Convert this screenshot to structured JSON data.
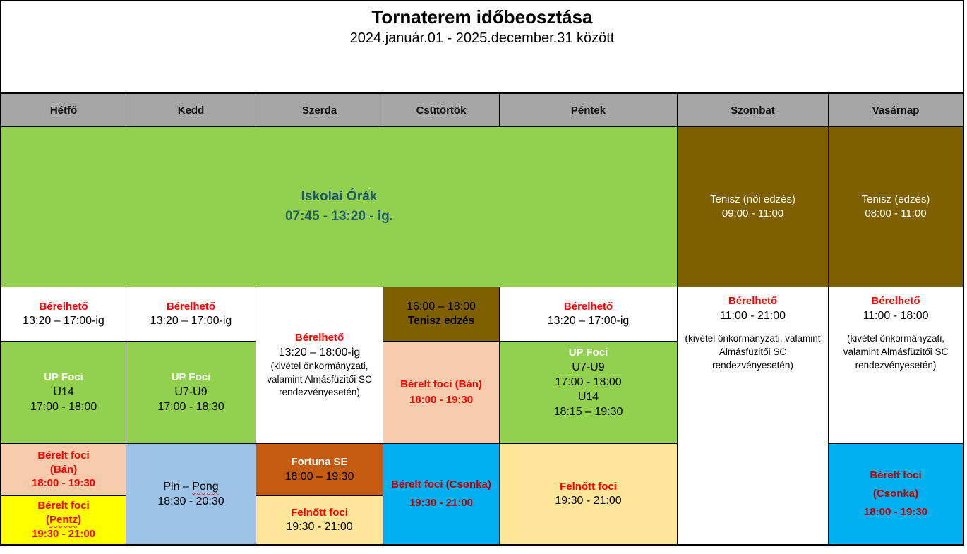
{
  "title_block": {
    "title": "Tornaterem időbeosztása",
    "subtitle": "2024.január.01 - 2025.december.31 között"
  },
  "days": [
    "Hétfő",
    "Kedd",
    "Szerda",
    "Csütörtök",
    "Péntek",
    "Szombat",
    "Vasárnap"
  ],
  "colors": {
    "header_gray": "#A6A6A6",
    "school_green": "#92D050",
    "tennis_brown": "#7F6000",
    "rented_peach": "#F8CBAD",
    "rented_yellow": "#FFFF00",
    "pingpong_blue": "#9DC3E6",
    "fortuna_orange": "#C55A11",
    "adult_cream": "#FFE699",
    "csonka_cyan": "#00B0F0",
    "red_text": "#FF0000",
    "dark_red_text": "#C00000",
    "teal_text": "#215968"
  },
  "cells": {
    "school_hours": {
      "title": "Iskolai Órák",
      "time": "07:45 - 13:20 - ig."
    },
    "sat_tennis": {
      "title": "Tenisz (női edzés)",
      "time": "09:00 - 11:00"
    },
    "sun_tennis": {
      "title": "Tenisz (edzés)",
      "time": "08:00 - 11:00"
    },
    "mon_rent": {
      "title": "Bérelhető",
      "time": "13:20 – 17:00-ig"
    },
    "tue_rent": {
      "title": "Bérelhető",
      "time": "13:20 – 17:00-ig"
    },
    "wed_rent": {
      "title": "Bérelhető",
      "time": "13:20 – 18:00-ig",
      "note": "(kivétel önkormányzati, valamint Almásfüzitői SC rendezvényesetén)"
    },
    "thu_tennis": {
      "time": "16:00 – 18:00",
      "title": "Tenisz edzés"
    },
    "fri_rent": {
      "title": "Bérelhető",
      "time": "13:20 – 17:00-ig"
    },
    "sat_rent": {
      "title": "Bérelhető",
      "time": "11:00 - 21:00",
      "note": "(kivétel önkormányzati, valamint Almásfüzitői SC rendezvényesetén)"
    },
    "sun_rent": {
      "title": "Bérelhető",
      "time": "11:00 - 18:00",
      "note": "(kivétel önkormányzati, valamint Almásfüzitői SC rendezvényesetén)"
    },
    "mon_up": {
      "title": "UP Foci",
      "group": "U14",
      "time": "17:00 - 18:00"
    },
    "tue_up": {
      "title": "UP Foci",
      "group": "U7-U9",
      "time": "17:00 - 18:30"
    },
    "thu_ban": {
      "title": "Bérelt foci (Bán)",
      "time": "18:00 - 19:30"
    },
    "fri_up": {
      "title": "UP Foci",
      "group1": "U7-U9",
      "time1": "17:00 - 18:00",
      "group2": "U14",
      "time2": "18:15 – 19:30"
    },
    "mon_ban": {
      "title": "Bérelt foci",
      "name": "(Bán)",
      "time": "18:00 - 19:30"
    },
    "mon_pentz": {
      "title": "Bérelt foci",
      "paren_open": "(",
      "name": "Pentz",
      "paren_close": ")",
      "time": "19:30 - 21:00"
    },
    "tue_pingpong": {
      "title_pre": "Pin – ",
      "title_wavy": "Pong",
      "time": "18:30 - 20:30"
    },
    "wed_fortuna": {
      "title": "Fortuna SE",
      "time": "18:00 – 19:30"
    },
    "wed_adult": {
      "title": "Felnőtt foci",
      "time": "19:30 - 21:00"
    },
    "thu_csonka": {
      "title": "Bérelt foci (Csonka)",
      "time": "19:30 - 21:00"
    },
    "fri_adult": {
      "title": "Felnőtt foci",
      "time": "19:30 - 21:00"
    },
    "sun_csonka": {
      "title": "Bérelt foci",
      "name": "(Csonka)",
      "time": "18:00 - 19:30"
    }
  }
}
